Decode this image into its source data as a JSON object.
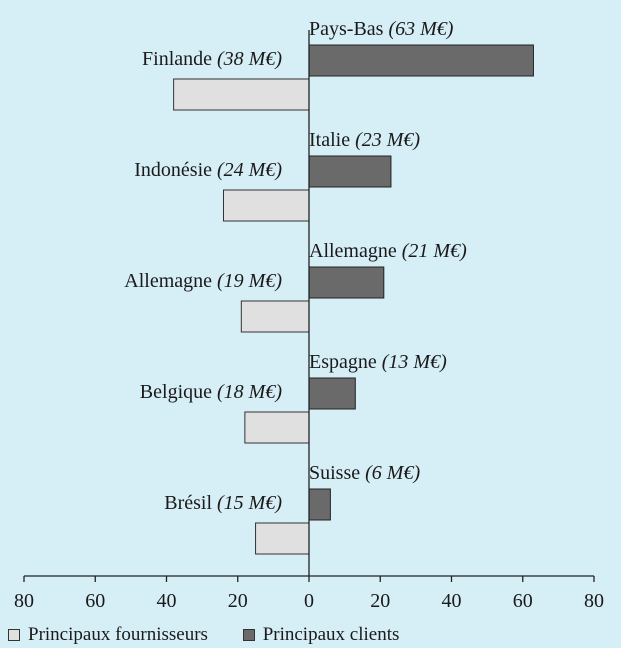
{
  "chart_data": {
    "type": "bar",
    "orientation": "horizontal-diverging",
    "xlim": [
      -80,
      80
    ],
    "x_ticks": [
      "80",
      "60",
      "40",
      "20",
      "0",
      "20",
      "40",
      "60",
      "80"
    ],
    "series": [
      {
        "name": "Principaux fournisseurs",
        "color": "#e0e0e0",
        "side": "left",
        "categories": [
          "Finlande",
          "Indonésie",
          "Allemagne",
          "Belgique",
          "Brésil"
        ],
        "values": [
          38,
          24,
          19,
          18,
          15
        ],
        "value_labels": [
          "(38 M€)",
          "(24 M€)",
          "(19 M€)",
          "(18 M€)",
          "(15 M€)"
        ]
      },
      {
        "name": "Principaux clients",
        "color": "#6a6a6a",
        "side": "right",
        "categories": [
          "Pays-Bas",
          "Italie",
          "Allemagne",
          "Espagne",
          "Suisse"
        ],
        "values": [
          63,
          23,
          21,
          13,
          6
        ],
        "value_labels": [
          "(63 M€)",
          "(23 M€)",
          "(21 M€)",
          "(13 M€)",
          "(6 M€)"
        ]
      }
    ],
    "legend": {
      "position": "bottom-left"
    }
  }
}
